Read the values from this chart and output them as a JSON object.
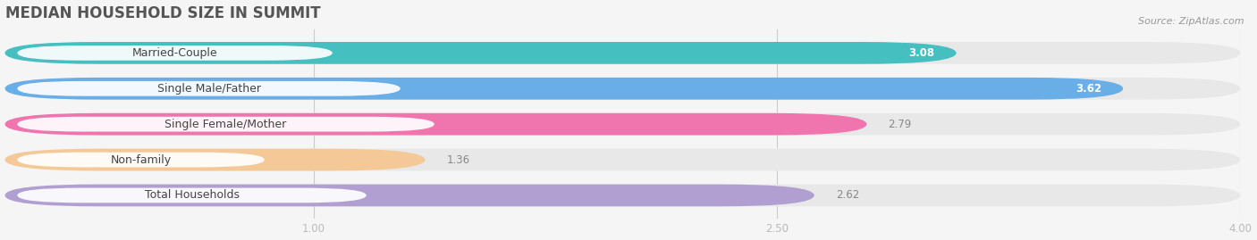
{
  "title": "MEDIAN HOUSEHOLD SIZE IN SUMMIT",
  "source": "Source: ZipAtlas.com",
  "categories": [
    "Married-Couple",
    "Single Male/Father",
    "Single Female/Mother",
    "Non-family",
    "Total Households"
  ],
  "values": [
    3.08,
    3.62,
    2.79,
    1.36,
    2.62
  ],
  "bar_colors": [
    "#45BFBF",
    "#6AAEE8",
    "#F075AE",
    "#F5C898",
    "#B09FD0"
  ],
  "bg_track_color": "#E8E8E8",
  "value_labels_inside": [
    true,
    true,
    false,
    false,
    false
  ],
  "label_color_inside": "#FFFFFF",
  "label_color_outside": "#888888",
  "xmin": 0.0,
  "xmax": 4.0,
  "xticks": [
    1.0,
    2.5,
    4.0
  ],
  "bar_height": 0.62,
  "title_fontsize": 12,
  "label_fontsize": 9,
  "value_fontsize": 8.5,
  "source_fontsize": 8,
  "fig_bg": "#F5F5F5"
}
